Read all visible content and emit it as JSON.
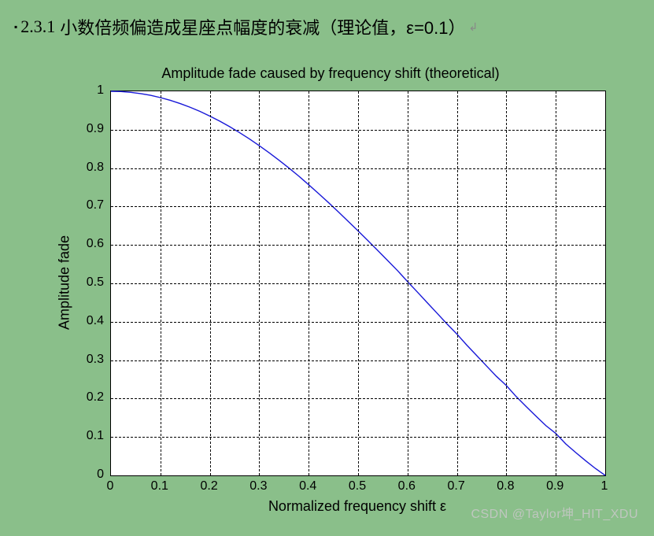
{
  "heading": {
    "bullet": "▪",
    "section": "2.3.1",
    "text_cn": "小数倍频偏造成星座点幅度的衰减（理论值，ε=0.1）",
    "tail_mark": "↲"
  },
  "chart": {
    "type": "line",
    "title": "Amplitude fade caused by frequency shift (theoretical)",
    "title_fontsize": 18,
    "xlabel": "Normalized frequency shift ε",
    "ylabel": "Amplitude fade",
    "label_fontsize": 18,
    "tick_fontsize": 16,
    "xlim": [
      0,
      1
    ],
    "ylim": [
      0,
      1
    ],
    "xticks": [
      0,
      0.1,
      0.2,
      0.3,
      0.4,
      0.5,
      0.6,
      0.7,
      0.8,
      0.9,
      1
    ],
    "yticks": [
      0,
      0.1,
      0.2,
      0.3,
      0.4,
      0.5,
      0.6,
      0.7,
      0.8,
      0.9,
      1
    ],
    "xtick_labels": [
      "0",
      "0.1",
      "0.2",
      "0.3",
      "0.4",
      "0.5",
      "0.6",
      "0.7",
      "0.8",
      "0.9",
      "1"
    ],
    "ytick_labels": [
      "0",
      "0.1",
      "0.2",
      "0.3",
      "0.4",
      "0.5",
      "0.6",
      "0.7",
      "0.8",
      "0.9",
      "1"
    ],
    "grid": true,
    "grid_style": "dashed",
    "grid_color": "#000000",
    "background_color": "#ffffff",
    "page_background_color": "#8abf8a",
    "axis_color": "#000000",
    "line_color": "#1818d8",
    "line_width": 1.4,
    "series": {
      "x": [
        0.0,
        0.02,
        0.04,
        0.06,
        0.08,
        0.1,
        0.12,
        0.14,
        0.16,
        0.18,
        0.2,
        0.22,
        0.24,
        0.26,
        0.28,
        0.3,
        0.32,
        0.34,
        0.36,
        0.38,
        0.4,
        0.42,
        0.44,
        0.46,
        0.48,
        0.5,
        0.52,
        0.54,
        0.56,
        0.58,
        0.6,
        0.62,
        0.64,
        0.66,
        0.68,
        0.7,
        0.72,
        0.74,
        0.76,
        0.78,
        0.8,
        0.82,
        0.84,
        0.86,
        0.88,
        0.9,
        0.92,
        0.94,
        0.96,
        0.98,
        1.0
      ],
      "y": [
        1.0,
        0.9993,
        0.9974,
        0.9941,
        0.9895,
        0.9836,
        0.9765,
        0.9681,
        0.9585,
        0.9477,
        0.9355,
        0.9223,
        0.908,
        0.8926,
        0.8761,
        0.8584,
        0.84,
        0.8206,
        0.8003,
        0.7792,
        0.7568,
        0.7339,
        0.7104,
        0.6862,
        0.6613,
        0.6366,
        0.6112,
        0.5853,
        0.5591,
        0.5329,
        0.5046,
        0.4773,
        0.4496,
        0.422,
        0.3943,
        0.3679,
        0.3392,
        0.3119,
        0.2847,
        0.2578,
        0.2339,
        0.2051,
        0.1794,
        0.1542,
        0.1296,
        0.1093,
        0.0822,
        0.06,
        0.0386,
        0.0182,
        0.0
      ]
    }
  },
  "watermark": "CSDN @Taylor坤_HIT_XDU"
}
